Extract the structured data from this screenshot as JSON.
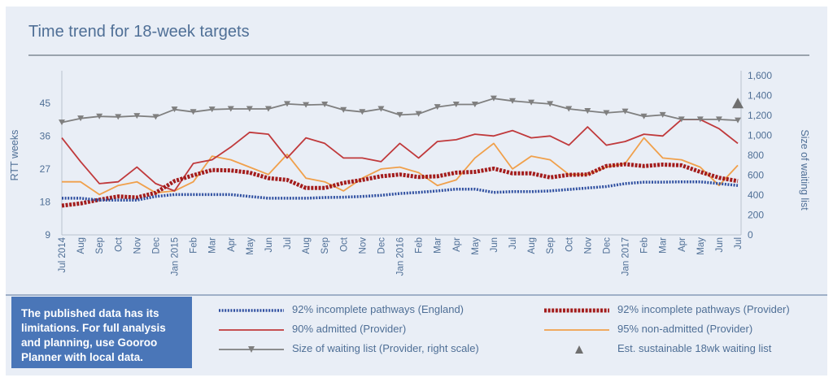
{
  "title": "Time trend for 18-week targets",
  "note": {
    "line1": "The published data has its",
    "line2": "limitations. For full analysis",
    "line3": "and planning, use Gooroo",
    "line4": "Planner with local data."
  },
  "colors": {
    "england": "#2f4fa0",
    "provider_incomplete": "#a31c1c",
    "admitted": "#c0393b",
    "nonadmitted": "#f0a04b",
    "waiting": "#7f7f7f",
    "axis_text": "#4f6f96"
  },
  "chart_data": {
    "type": "line",
    "title": "Time trend for 18-week targets",
    "ylabel": "RTT weeks",
    "ylabel_right": "Size of waiting list",
    "ylim": [
      9,
      52.5
    ],
    "yticks": [
      "9",
      "18",
      "27",
      "36",
      "45"
    ],
    "ylim_right": [
      0,
      1600
    ],
    "yticks_right": [
      "0",
      "200",
      "400",
      "600",
      "800",
      "1,000",
      "1,200",
      "1,400",
      "1,600"
    ],
    "x_labels": [
      "Jul 2014",
      "Aug",
      "Sep",
      "Oct",
      "Nov",
      "Dec",
      "Jan 2015",
      "Feb",
      "Mar",
      "Apr",
      "May",
      "Jun",
      "Jul",
      "Aug",
      "Sep",
      "Oct",
      "Nov",
      "Dec",
      "Jan 2016",
      "Feb",
      "Mar",
      "Apr",
      "May",
      "Jun",
      "Jul",
      "Aug",
      "Sep",
      "Oct",
      "Nov",
      "Dec",
      "Jan 2017",
      "Feb",
      "Mar",
      "Apr",
      "May",
      "Jun",
      "Jul"
    ],
    "series": [
      {
        "name": "92% incomplete pathways (England)",
        "axis": "left",
        "style": "dotted",
        "values": [
          19,
          19,
          18.5,
          18.5,
          18.5,
          19.5,
          20,
          20,
          20,
          20,
          19.5,
          19,
          19,
          19,
          19.2,
          19.3,
          19.5,
          19.8,
          20.3,
          20.6,
          21,
          21.5,
          21.5,
          20.6,
          20.8,
          20.8,
          21,
          21.4,
          21.8,
          22.2,
          23,
          23.4,
          23.4,
          23.5,
          23.5,
          23,
          22.5
        ]
      },
      {
        "name": "92% incomplete pathways (Provider)",
        "axis": "left",
        "style": "dotted-thick",
        "values": [
          17,
          17.6,
          18.6,
          19.5,
          19.2,
          20.5,
          23.7,
          25.3,
          26.7,
          26.6,
          26,
          24.5,
          24,
          21.8,
          21.8,
          23.2,
          24,
          25,
          25.5,
          24.8,
          25,
          26,
          26.2,
          27.1,
          25.8,
          25.8,
          24.7,
          25.4,
          25.5,
          27.8,
          28.3,
          27.8,
          28.2,
          28,
          26.2,
          24.6,
          23.7
        ]
      },
      {
        "name": "90% admitted (Provider)",
        "axis": "left",
        "style": "solid",
        "values": [
          35.5,
          29,
          23,
          23.5,
          27.5,
          23,
          21,
          28.5,
          29.5,
          33,
          37,
          36.5,
          30,
          35.5,
          34,
          30,
          30,
          29,
          34,
          30,
          34.5,
          35,
          36.5,
          36,
          37.5,
          35.5,
          36,
          33.5,
          38.5,
          33.5,
          34.5,
          36.5,
          36,
          40.5,
          40.5,
          38,
          34
        ]
      },
      {
        "name": "95% non-admitted (Provider)",
        "axis": "left",
        "style": "solid",
        "values": [
          23.5,
          23.5,
          20,
          22.5,
          23.5,
          20.5,
          21,
          23.5,
          30.5,
          29.5,
          27.5,
          25.5,
          31,
          24.5,
          23.5,
          21,
          24.5,
          27,
          27.5,
          26,
          22.5,
          24,
          30,
          34,
          27,
          30.5,
          29.5,
          25.5,
          25.5,
          27.5,
          28.5,
          35.5,
          30,
          29.5,
          27.5,
          22.5,
          28
        ]
      },
      {
        "name": "Size of waiting list (Provider, right scale)",
        "axis": "right",
        "style": "solid-triangle",
        "values": [
          1130,
          1170,
          1190,
          1185,
          1195,
          1185,
          1260,
          1235,
          1260,
          1265,
          1265,
          1265,
          1315,
          1305,
          1310,
          1255,
          1235,
          1265,
          1205,
          1215,
          1285,
          1310,
          1310,
          1370,
          1345,
          1330,
          1315,
          1265,
          1245,
          1225,
          1240,
          1190,
          1205,
          1160,
          1160,
          1160,
          1150
        ]
      },
      {
        "name": "Est. sustainable 18wk waiting list",
        "axis": "right",
        "style": "marker",
        "values": [
          null,
          null,
          null,
          null,
          null,
          null,
          null,
          null,
          null,
          null,
          null,
          null,
          null,
          null,
          null,
          null,
          null,
          null,
          null,
          null,
          null,
          null,
          null,
          null,
          null,
          null,
          null,
          null,
          null,
          null,
          null,
          null,
          null,
          null,
          null,
          null,
          1320
        ]
      }
    ],
    "grid": false,
    "legend": "bottom"
  }
}
